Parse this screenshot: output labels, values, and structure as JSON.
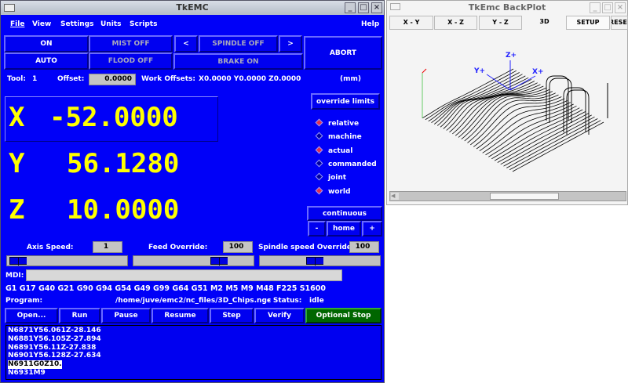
{
  "main": {
    "title": "TkEMC",
    "menu": [
      "File",
      "View",
      "Settings",
      "Units",
      "Scripts"
    ],
    "help": "Help",
    "buttons": {
      "on": "ON",
      "auto": "AUTO",
      "mist": "MIST OFF",
      "flood": "FLOOD OFF",
      "spindle_dec": "<",
      "spindle": "SPINDLE OFF",
      "spindle_inc": ">",
      "brake": "BRAKE ON",
      "abort": "ABORT"
    },
    "tool_label": "Tool:",
    "tool": "1",
    "offset_label": "Offset:",
    "offset": "0.0000",
    "work_offsets_label": "Work Offsets:",
    "work_offsets": "X0.0000 Y0.0000 Z0.0000",
    "units": "(mm)",
    "dro": [
      {
        "axis": "X",
        "value": "-52.0000"
      },
      {
        "axis": "Y",
        "value": "56.1280"
      },
      {
        "axis": "Z",
        "value": "10.0000"
      }
    ],
    "override_limits": "override limits",
    "radios": [
      {
        "label": "relative",
        "on": true
      },
      {
        "label": "machine",
        "on": false
      },
      {
        "label": "actual",
        "on": true
      },
      {
        "label": "commanded",
        "on": false
      },
      {
        "label": "joint",
        "on": false
      },
      {
        "label": "world",
        "on": true
      }
    ],
    "jog_mode": "continuous",
    "jog_minus": "-",
    "home": "home",
    "jog_plus": "+",
    "axis_speed_label": "Axis Speed:",
    "axis_speed": "1",
    "feed_label": "Feed Override:",
    "feed": "100",
    "spindle_ov_label": "Spindle speed Override:",
    "spindle_ov": "100",
    "sliders": {
      "axis_speed": 0.02,
      "feed": 0.75,
      "spindle": 0.45
    },
    "mdi_label": "MDI:",
    "mdi_value": "",
    "gcodes": "G1 G17 G40 G21 G90 G94 G54 G49 G99 G64 G51 M2 M5 M9 M48 F225 S1600",
    "program_label": "Program:",
    "program": "/home/juve/emc2/nc_files/3D_Chips.ngc",
    "status_label": "-  Status:",
    "status": "idle",
    "prog_buttons": [
      "Open...",
      "Run",
      "Pause",
      "Resume",
      "Step",
      "Verify",
      "Optional Stop"
    ],
    "code_lines": [
      "N6871Y56.061Z-28.146",
      "N6881Y56.105Z-27.894",
      "N6891Y56.11Z-27.838",
      "N6901Y56.128Z-27.634",
      "N6911G0Z10.",
      "N6931M9"
    ],
    "highlight_line": 4,
    "colors": {
      "background": "#0000f8",
      "dro": "#ffff00",
      "optional_stop": "#006600"
    }
  },
  "backplot": {
    "title": "TkEmc BackPlot",
    "tabs": [
      "X - Y",
      "X - Z",
      "Y - Z",
      "3D",
      "SETUP",
      "RESET"
    ],
    "active_tab": "3D",
    "axes": {
      "z": "Z+",
      "y": "Y+",
      "x": "X+"
    },
    "scroll": 0.6
  }
}
